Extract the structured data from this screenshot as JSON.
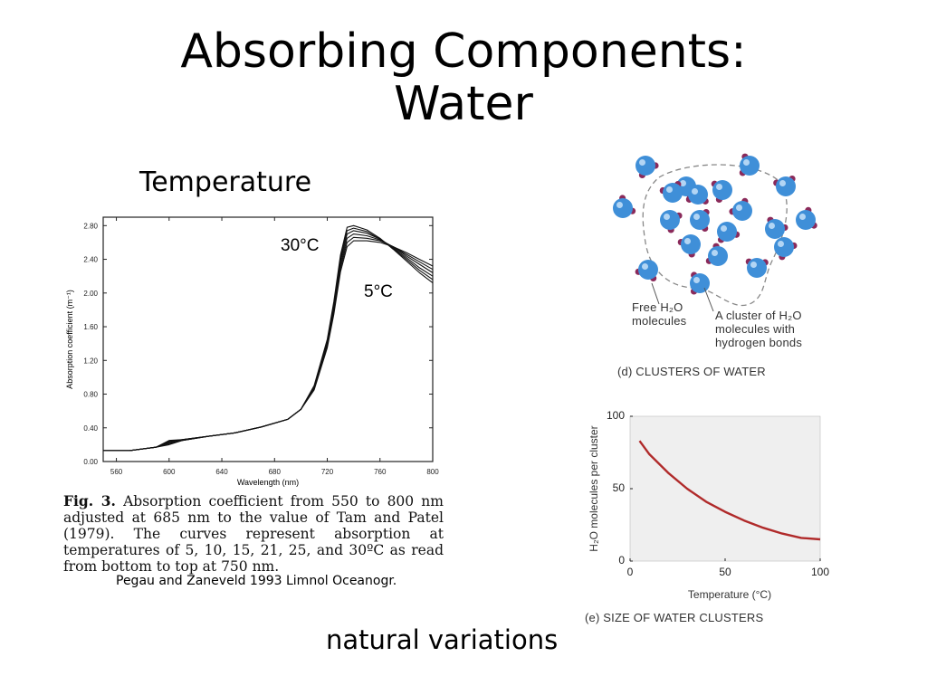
{
  "slide": {
    "title_line1": "Absorbing Components:",
    "title_line2": "Water",
    "section_label": "Temperature",
    "footer_note": "natural variations",
    "citation": "Pegau and Zaneveld 1993 Limnol Oceanogr."
  },
  "fig3": {
    "caption_lead": "Fig. 3.",
    "caption_text": "Absorption coefficient from 550 to 800 nm adjusted at 685 nm to the value of Tam and Patel (1979). The curves represent absorption at temperatures of 5, 10, 15, 21, 25, and 30ºC as read from bottom to top at 750 nm.",
    "label_high": "30°C",
    "label_low": "5°C"
  },
  "clusters": {
    "free_label": "Free H₂O molecules",
    "cluster_label": "A cluster of H₂O molecules with hydrogen bonds",
    "panel_caption": "(d) CLUSTERS OF WATER",
    "colors": {
      "oxygen": "#3f8fd8",
      "hydrogen": "#8a2a5a",
      "outline": "#888888"
    }
  },
  "size_panel": {
    "caption": "(e) SIZE OF WATER CLUSTERS"
  },
  "chart_data": [
    {
      "type": "line",
      "xlabel": "Wavelength (nm)",
      "ylabel": "Absorption coefficient (m⁻¹)",
      "xlim": [
        550,
        800
      ],
      "ylim": [
        0,
        2.9
      ],
      "xticks": [
        "560",
        "600",
        "640",
        "680",
        "720",
        "760",
        "800"
      ],
      "yticks": [
        "0.00",
        "0.40",
        "0.80",
        "1.20",
        "1.60",
        "2.00",
        "2.40",
        "2.80"
      ],
      "x": [
        550,
        570,
        590,
        600,
        610,
        630,
        650,
        670,
        690,
        700,
        710,
        720,
        725,
        730,
        735,
        740,
        750,
        760,
        770,
        780,
        790,
        800
      ],
      "series": [
        {
          "values": [
            0.13,
            0.13,
            0.17,
            0.25,
            0.26,
            0.3,
            0.34,
            0.41,
            0.5,
            0.62,
            0.85,
            1.35,
            1.75,
            2.25,
            2.55,
            2.62,
            2.62,
            2.6,
            2.55,
            2.48,
            2.4,
            2.32
          ]
        },
        {
          "values": [
            0.13,
            0.13,
            0.17,
            0.24,
            0.26,
            0.3,
            0.34,
            0.41,
            0.5,
            0.62,
            0.86,
            1.37,
            1.78,
            2.29,
            2.6,
            2.66,
            2.65,
            2.62,
            2.55,
            2.46,
            2.37,
            2.28
          ]
        },
        {
          "values": [
            0.13,
            0.13,
            0.17,
            0.23,
            0.26,
            0.3,
            0.34,
            0.41,
            0.5,
            0.62,
            0.87,
            1.39,
            1.81,
            2.33,
            2.65,
            2.7,
            2.68,
            2.63,
            2.55,
            2.44,
            2.34,
            2.24
          ]
        },
        {
          "values": [
            0.13,
            0.13,
            0.17,
            0.22,
            0.25,
            0.3,
            0.34,
            0.41,
            0.5,
            0.62,
            0.88,
            1.41,
            1.84,
            2.37,
            2.7,
            2.74,
            2.71,
            2.64,
            2.54,
            2.42,
            2.3,
            2.2
          ]
        },
        {
          "values": [
            0.13,
            0.13,
            0.17,
            0.21,
            0.25,
            0.3,
            0.34,
            0.41,
            0.5,
            0.62,
            0.89,
            1.43,
            1.87,
            2.41,
            2.74,
            2.77,
            2.73,
            2.64,
            2.53,
            2.4,
            2.27,
            2.16
          ]
        },
        {
          "values": [
            0.13,
            0.13,
            0.17,
            0.2,
            0.25,
            0.3,
            0.34,
            0.41,
            0.5,
            0.62,
            0.9,
            1.45,
            1.9,
            2.45,
            2.78,
            2.8,
            2.75,
            2.65,
            2.52,
            2.38,
            2.24,
            2.12
          ]
        }
      ]
    },
    {
      "type": "line",
      "xlabel": "Temperature (°C)",
      "ylabel": "H₂O molecules per cluster",
      "xlim": [
        0,
        100
      ],
      "ylim": [
        0,
        100
      ],
      "xticks": [
        "0",
        "50",
        "100"
      ],
      "yticks": [
        "0",
        "50",
        "100"
      ],
      "x": [
        5,
        10,
        20,
        30,
        40,
        50,
        60,
        70,
        80,
        90,
        100
      ],
      "series": [
        {
          "values": [
            83,
            74,
            61,
            50,
            41,
            34,
            28,
            23,
            19,
            16,
            15
          ],
          "color": "#b02a2a"
        }
      ]
    }
  ]
}
